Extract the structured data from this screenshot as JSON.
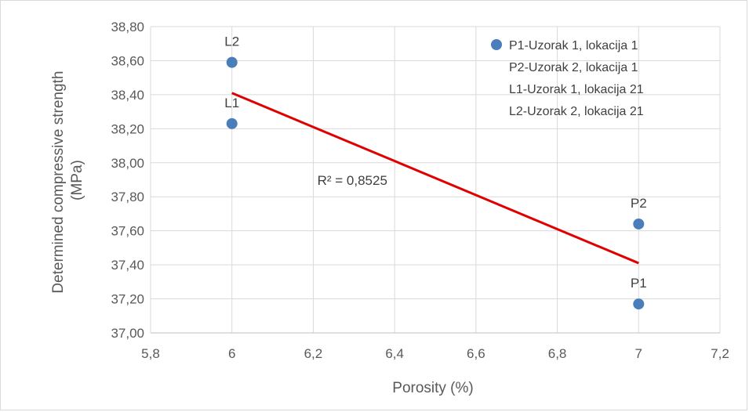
{
  "chart_data": {
    "type": "scatter",
    "xlabel": "Porosity (%)",
    "ylabel_lines": [
      "Determined compressive strength",
      "(MPa)"
    ],
    "xlim": [
      5.8,
      7.2
    ],
    "ylim": [
      37.0,
      38.8
    ],
    "x_ticks": [
      5.8,
      6.0,
      6.2,
      6.4,
      6.6,
      6.8,
      7.0,
      7.2
    ],
    "x_tick_labels": [
      "5,8",
      "6",
      "6,2",
      "6,4",
      "6,6",
      "6,8",
      "7",
      "7,2"
    ],
    "y_ticks": [
      37.0,
      37.2,
      37.4,
      37.6,
      37.8,
      38.0,
      38.2,
      38.4,
      38.6,
      38.8
    ],
    "y_tick_labels": [
      "37,00",
      "37,20",
      "37,40",
      "37,60",
      "37,80",
      "38,00",
      "38,20",
      "38,40",
      "38,60",
      "38,80"
    ],
    "grid": true,
    "legend_position": "top-right",
    "legend_entries": [
      "P1-Uzorak 1, lokacija 1",
      "P2-Uzorak 2, lokacija 1",
      "L1-Uzorak 1, lokacija 21",
      "L2-Uzorak 2, lokacija 21"
    ],
    "points": [
      {
        "label": "L2",
        "x": 6.0,
        "y": 38.59
      },
      {
        "label": "L1",
        "x": 6.0,
        "y": 38.23
      },
      {
        "label": "P2",
        "x": 7.0,
        "y": 37.64
      },
      {
        "label": "P1",
        "x": 7.0,
        "y": 37.17
      }
    ],
    "trendline": {
      "x": [
        6.0,
        7.0
      ],
      "y": [
        38.41,
        37.41
      ],
      "r2_text": "R² = 0,8525"
    },
    "colors": {
      "marker": "#4a7ebb",
      "trendline": "#e00000",
      "grid": "#d9d9d9",
      "text": "#595959"
    }
  }
}
